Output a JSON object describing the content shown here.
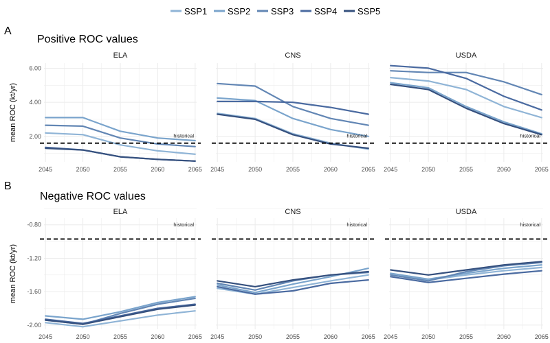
{
  "chart_data": [
    {
      "tag": "A",
      "title": "Positive ROC values",
      "ylabel": "mean ROC (kt/yr)",
      "type": "line",
      "x": [
        2045,
        2050,
        2055,
        2060,
        2065
      ],
      "ylim": [
        0.5,
        6.3
      ],
      "yticks": [
        2.0,
        4.0,
        6.0
      ],
      "ytick_labels": [
        "2.00",
        "4.00",
        "6.00"
      ],
      "historical": 1.6,
      "annotation": "historical",
      "facets": [
        {
          "name": "ELA",
          "series": [
            {
              "name": "SSP1",
              "values": [
                2.2,
                2.1,
                1.5,
                1.15,
                0.95
              ]
            },
            {
              "name": "SSP2",
              "values": [
                3.1,
                3.1,
                2.3,
                1.9,
                1.75
              ]
            },
            {
              "name": "SSP3",
              "values": [
                2.65,
                2.6,
                1.9,
                1.55,
                1.4
              ]
            },
            {
              "name": "SSP4",
              "values": [
                1.35,
                1.2,
                0.8,
                0.65,
                0.55
              ]
            },
            {
              "name": "SSP5",
              "values": [
                1.3,
                1.2,
                0.8,
                0.65,
                0.55
              ]
            }
          ]
        },
        {
          "name": "CNS",
          "series": [
            {
              "name": "SSP1",
              "values": [
                3.35,
                3.05,
                2.15,
                1.6,
                1.25
              ]
            },
            {
              "name": "SSP2",
              "values": [
                4.25,
                4.1,
                3.05,
                2.4,
                2.0
              ]
            },
            {
              "name": "SSP3",
              "values": [
                5.1,
                4.95,
                3.75,
                3.05,
                2.65
              ]
            },
            {
              "name": "SSP4",
              "values": [
                4.05,
                4.05,
                4.0,
                3.7,
                3.3
              ]
            },
            {
              "name": "SSP5",
              "values": [
                3.3,
                3.0,
                2.1,
                1.55,
                1.3
              ]
            }
          ]
        },
        {
          "name": "USDA",
          "series": [
            {
              "name": "SSP1",
              "values": [
                5.45,
                5.25,
                4.75,
                3.75,
                3.1
              ]
            },
            {
              "name": "SSP2",
              "values": [
                5.15,
                4.85,
                3.75,
                2.85,
                2.15
              ]
            },
            {
              "name": "SSP3",
              "values": [
                5.85,
                5.75,
                5.75,
                5.2,
                4.45
              ]
            },
            {
              "name": "SSP4",
              "values": [
                6.15,
                6.0,
                5.4,
                4.35,
                3.55
              ]
            },
            {
              "name": "SSP5",
              "values": [
                5.05,
                4.75,
                3.65,
                2.75,
                2.1
              ]
            }
          ]
        }
      ]
    },
    {
      "tag": "B",
      "title": "Negative ROC values",
      "ylabel": "mean ROC (kt/yr)",
      "type": "line",
      "x": [
        2045,
        2050,
        2055,
        2060,
        2065
      ],
      "ylim": [
        -2.05,
        -0.72
      ],
      "yticks": [
        -0.8,
        -1.2,
        -1.6,
        -2.0
      ],
      "ytick_labels": [
        "-0.80",
        "-1.20",
        "-1.60",
        "-2.00"
      ],
      "historical": -0.97,
      "annotation": "historical",
      "facets": [
        {
          "name": "ELA",
          "series": [
            {
              "name": "SSP1",
              "values": [
                -1.97,
                -2.02,
                -1.95,
                -1.88,
                -1.83
              ]
            },
            {
              "name": "SSP2",
              "values": [
                -1.89,
                -1.93,
                -1.84,
                -1.73,
                -1.66
              ]
            },
            {
              "name": "SSP3",
              "values": [
                -1.94,
                -1.99,
                -1.86,
                -1.75,
                -1.68
              ]
            },
            {
              "name": "SSP4",
              "values": [
                -1.93,
                -1.98,
                -1.89,
                -1.8,
                -1.75
              ]
            },
            {
              "name": "SSP5",
              "values": [
                -1.94,
                -1.99,
                -1.9,
                -1.81,
                -1.76
              ]
            }
          ]
        },
        {
          "name": "CNS",
          "series": [
            {
              "name": "SSP1",
              "values": [
                -1.56,
                -1.63,
                -1.55,
                -1.47,
                -1.4
              ]
            },
            {
              "name": "SSP2",
              "values": [
                -1.52,
                -1.61,
                -1.51,
                -1.42,
                -1.32
              ]
            },
            {
              "name": "SSP3",
              "values": [
                -1.5,
                -1.58,
                -1.47,
                -1.4,
                -1.37
              ]
            },
            {
              "name": "SSP4",
              "values": [
                -1.54,
                -1.63,
                -1.59,
                -1.5,
                -1.46
              ]
            },
            {
              "name": "SSP5",
              "values": [
                -1.47,
                -1.54,
                -1.46,
                -1.4,
                -1.36
              ]
            }
          ]
        },
        {
          "name": "USDA",
          "series": [
            {
              "name": "SSP1",
              "values": [
                -1.4,
                -1.46,
                -1.4,
                -1.35,
                -1.31
              ]
            },
            {
              "name": "SSP2",
              "values": [
                -1.38,
                -1.45,
                -1.38,
                -1.32,
                -1.28
              ]
            },
            {
              "name": "SSP3",
              "values": [
                -1.4,
                -1.47,
                -1.36,
                -1.29,
                -1.25
              ]
            },
            {
              "name": "SSP4",
              "values": [
                -1.42,
                -1.49,
                -1.44,
                -1.39,
                -1.35
              ]
            },
            {
              "name": "SSP5",
              "values": [
                -1.34,
                -1.4,
                -1.34,
                -1.28,
                -1.24
              ]
            }
          ]
        }
      ]
    }
  ],
  "legend": {
    "placement": "top",
    "entries": [
      {
        "name": "SSP1",
        "color": "#8fb4d6"
      },
      {
        "name": "SSP2",
        "color": "#7aa4cc"
      },
      {
        "name": "SSP3",
        "color": "#6286b4"
      },
      {
        "name": "SSP4",
        "color": "#4a6aa0"
      },
      {
        "name": "SSP5",
        "color": "#35507e"
      }
    ]
  },
  "styles": {
    "grid_color": "#ebebeb",
    "historical_color": "#000000"
  }
}
